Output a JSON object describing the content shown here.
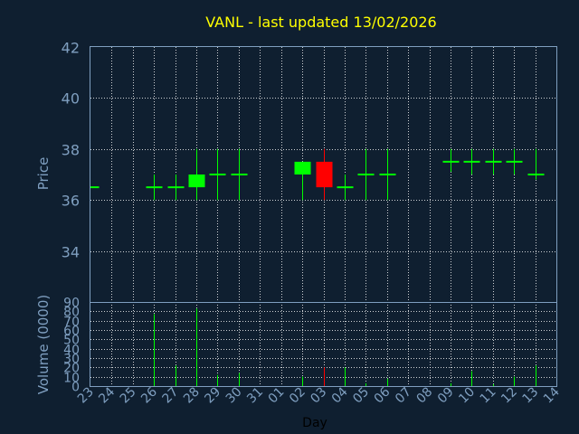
{
  "chart_data": {
    "type": "candlestick",
    "title": "VANL - last updated 13/02/2026",
    "xlabel": "Day",
    "price_panel": {
      "ylabel": "Price",
      "ylim": [
        32,
        42
      ],
      "y_ticks": [
        "34",
        "36",
        "38",
        "40",
        "42"
      ],
      "y_tick_values": [
        34,
        36,
        38,
        40,
        42
      ]
    },
    "volume_panel": {
      "ylabel": "Volume (0000)",
      "ylim": [
        0,
        90
      ],
      "y_ticks": [
        "0",
        "10",
        "20",
        "30",
        "40",
        "50",
        "60",
        "70",
        "80",
        "90"
      ],
      "y_tick_values": [
        0,
        10,
        20,
        30,
        40,
        50,
        60,
        70,
        80,
        90
      ]
    },
    "x_ticks": [
      "23",
      "24",
      "25",
      "26",
      "27",
      "28",
      "29",
      "30",
      "31",
      "01",
      "02",
      "03",
      "04",
      "05",
      "06",
      "07",
      "08",
      "09",
      "10",
      "11",
      "12",
      "13",
      "14"
    ],
    "candles": [
      {
        "day": "23",
        "open": 36.5,
        "high": 36.5,
        "low": 36.5,
        "close": 36.5,
        "volume": 0
      },
      {
        "day": "26",
        "open": 36.5,
        "high": 37.0,
        "low": 36.0,
        "close": 36.5,
        "volume": 77
      },
      {
        "day": "27",
        "open": 36.5,
        "high": 37.0,
        "low": 36.0,
        "close": 36.5,
        "volume": 22
      },
      {
        "day": "28",
        "open": 36.5,
        "high": 38.0,
        "low": 36.0,
        "close": 37.0,
        "volume": 83
      },
      {
        "day": "29",
        "open": 37.0,
        "high": 38.0,
        "low": 36.0,
        "close": 37.0,
        "volume": 12
      },
      {
        "day": "30",
        "open": 37.0,
        "high": 38.0,
        "low": 36.0,
        "close": 37.0,
        "volume": 14
      },
      {
        "day": "02",
        "open": 37.0,
        "high": 37.5,
        "low": 36.0,
        "close": 37.5,
        "volume": 10
      },
      {
        "day": "03",
        "open": 37.5,
        "high": 38.0,
        "low": 36.0,
        "close": 36.5,
        "volume": 20
      },
      {
        "day": "04",
        "open": 36.5,
        "high": 37.0,
        "low": 36.0,
        "close": 36.5,
        "volume": 20
      },
      {
        "day": "05",
        "open": 37.0,
        "high": 38.0,
        "low": 36.0,
        "close": 37.0,
        "volume": 3
      },
      {
        "day": "06",
        "open": 37.0,
        "high": 38.0,
        "low": 36.0,
        "close": 37.0,
        "volume": 8
      },
      {
        "day": "09",
        "open": 37.5,
        "high": 38.0,
        "low": 37.1,
        "close": 37.5,
        "volume": 3
      },
      {
        "day": "10",
        "open": 37.5,
        "high": 38.0,
        "low": 37.0,
        "close": 37.5,
        "volume": 16
      },
      {
        "day": "11",
        "open": 37.5,
        "high": 38.0,
        "low": 37.0,
        "close": 37.5,
        "volume": 2
      },
      {
        "day": "12",
        "open": 37.5,
        "high": 38.0,
        "low": 37.0,
        "close": 37.5,
        "volume": 10
      },
      {
        "day": "13",
        "open": 37.0,
        "high": 38.0,
        "low": 36.8,
        "close": 37.0,
        "volume": 22
      }
    ],
    "grid": true,
    "colors": {
      "background": "#0f1f30",
      "up": "#00ff00",
      "down": "#ff0000",
      "axis": "#7f9fc0",
      "title": "#ffff00",
      "grid": "#ffffff"
    }
  }
}
